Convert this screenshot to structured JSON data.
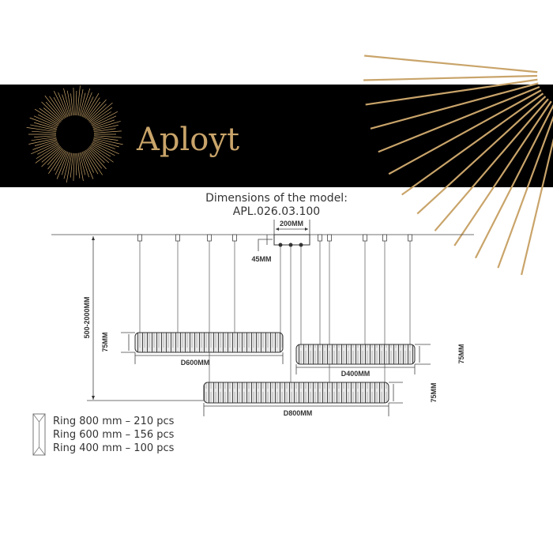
{
  "banner": {
    "brand": "Aployt",
    "background": "#000000",
    "accent": "#c9a46a"
  },
  "title": {
    "line1": "Dimensions of the model:",
    "line2": "APL.026.03.100"
  },
  "dimensions": {
    "canopy_width": "200MM",
    "canopy_height": "45MM",
    "suspension_height": "500-2000MM",
    "ring_600": {
      "diameter": "D600MM",
      "height": "75MM"
    },
    "ring_400": {
      "diameter": "D400MM",
      "height": "75MM"
    },
    "ring_800": {
      "diameter": "D800MM",
      "height": "75MM"
    }
  },
  "legend": {
    "icon": "crystal-prism-icon",
    "items": [
      "Ring 800 mm – 210 pcs",
      "Ring 600 mm – 156 pcs",
      "Ring 400 mm – 100 pcs"
    ]
  }
}
